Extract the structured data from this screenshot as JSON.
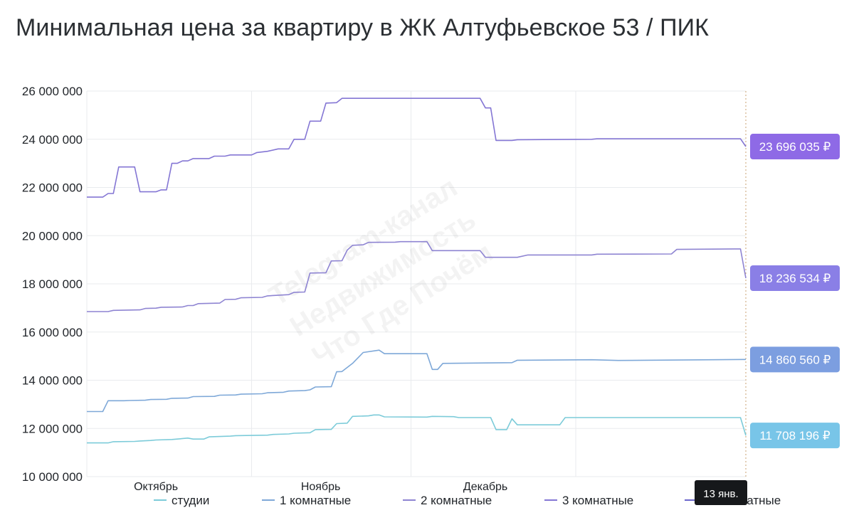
{
  "title": "Минимальная цена за квартиру в ЖК Алтуфьевское 53 / ПИК",
  "watermark": [
    "Telegram-канал",
    "Недвижимость",
    "Что Где Почём"
  ],
  "tooltip": "13 янв.",
  "chart_data": {
    "type": "line",
    "ylim": [
      10000000,
      26000000
    ],
    "yticks": [
      10000000,
      12000000,
      14000000,
      16000000,
      18000000,
      20000000,
      22000000,
      24000000,
      26000000
    ],
    "ytick_labels": [
      "10 000 000",
      "12 000 000",
      "14 000 000",
      "16 000 000",
      "18 000 000",
      "20 000 000",
      "22 000 000",
      "24 000 000",
      "26 000 000"
    ],
    "x_range": [
      "2024-09-11",
      "2025-01-13"
    ],
    "x_grid_dates": [
      "2024-09-11",
      "2024-10-12",
      "2024-11-11",
      "2024-12-12",
      "2025-01-13"
    ],
    "x_labels": [
      {
        "date": "2024-09-24",
        "label": "Октябрь"
      },
      {
        "date": "2024-10-25",
        "label": "Ноябрь"
      },
      {
        "date": "2024-11-25",
        "label": "Декабрь"
      }
    ],
    "legend_position": "bottom",
    "series": [
      {
        "name": "студии",
        "color": "#7ccbd9",
        "badge_color": "#78c5e8",
        "last_value_label": "11 708 196 ₽",
        "points": [
          [
            "2024-09-11",
            11400000
          ],
          [
            "2024-09-15",
            11400000
          ],
          [
            "2024-09-16",
            11450000
          ],
          [
            "2024-09-20",
            11460000
          ],
          [
            "2024-09-21",
            11480000
          ],
          [
            "2024-09-23",
            11500000
          ],
          [
            "2024-09-24",
            11520000
          ],
          [
            "2024-09-27",
            11540000
          ],
          [
            "2024-09-28",
            11560000
          ],
          [
            "2024-09-30",
            11600000
          ],
          [
            "2024-10-01",
            11560000
          ],
          [
            "2024-10-03",
            11560000
          ],
          [
            "2024-10-04",
            11650000
          ],
          [
            "2024-10-08",
            11680000
          ],
          [
            "2024-10-09",
            11700000
          ],
          [
            "2024-10-15",
            11720000
          ],
          [
            "2024-10-16",
            11750000
          ],
          [
            "2024-10-19",
            11770000
          ],
          [
            "2024-10-20",
            11800000
          ],
          [
            "2024-10-23",
            11820000
          ],
          [
            "2024-10-24",
            11950000
          ],
          [
            "2024-10-27",
            11960000
          ],
          [
            "2024-10-28",
            12200000
          ],
          [
            "2024-10-30",
            12220000
          ],
          [
            "2024-10-31",
            12500000
          ],
          [
            "2024-11-03",
            12520000
          ],
          [
            "2024-11-04",
            12560000
          ],
          [
            "2024-11-05",
            12560000
          ],
          [
            "2024-11-06",
            12480000
          ],
          [
            "2024-11-14",
            12470000
          ],
          [
            "2024-11-15",
            12500000
          ],
          [
            "2024-11-19",
            12490000
          ],
          [
            "2024-11-20",
            12450000
          ],
          [
            "2024-11-26",
            12450000
          ],
          [
            "2024-11-27",
            11950000
          ],
          [
            "2024-11-29",
            11950000
          ],
          [
            "2024-11-30",
            12400000
          ],
          [
            "2024-12-01",
            12150000
          ],
          [
            "2024-12-09",
            12150000
          ],
          [
            "2024-12-10",
            12450000
          ],
          [
            "2025-01-12",
            12450000
          ],
          [
            "2025-01-13",
            11708196
          ]
        ]
      },
      {
        "name": "1 комнатные",
        "color": "#7ea8d8",
        "badge_color": "#7c9ee0",
        "last_value_label": "14 860 560 ₽",
        "points": [
          [
            "2024-09-11",
            12700000
          ],
          [
            "2024-09-14",
            12700000
          ],
          [
            "2024-09-15",
            13150000
          ],
          [
            "2024-09-18",
            13150000
          ],
          [
            "2024-09-19",
            13160000
          ],
          [
            "2024-09-22",
            13170000
          ],
          [
            "2024-09-23",
            13200000
          ],
          [
            "2024-09-26",
            13210000
          ],
          [
            "2024-09-27",
            13250000
          ],
          [
            "2024-09-30",
            13260000
          ],
          [
            "2024-10-01",
            13320000
          ],
          [
            "2024-10-05",
            13330000
          ],
          [
            "2024-10-06",
            13380000
          ],
          [
            "2024-10-09",
            13390000
          ],
          [
            "2024-10-10",
            13420000
          ],
          [
            "2024-10-14",
            13440000
          ],
          [
            "2024-10-15",
            13480000
          ],
          [
            "2024-10-18",
            13500000
          ],
          [
            "2024-10-19",
            13550000
          ],
          [
            "2024-10-22",
            13570000
          ],
          [
            "2024-10-23",
            13600000
          ],
          [
            "2024-10-24",
            13720000
          ],
          [
            "2024-10-27",
            13730000
          ],
          [
            "2024-10-28",
            14350000
          ],
          [
            "2024-10-29",
            14360000
          ],
          [
            "2024-10-31",
            14700000
          ],
          [
            "2024-11-02",
            15150000
          ],
          [
            "2024-11-05",
            15250000
          ],
          [
            "2024-11-06",
            15100000
          ],
          [
            "2024-11-14",
            15100000
          ],
          [
            "2024-11-15",
            14450000
          ],
          [
            "2024-11-16",
            14450000
          ],
          [
            "2024-11-17",
            14700000
          ],
          [
            "2024-11-30",
            14730000
          ],
          [
            "2024-12-01",
            14830000
          ],
          [
            "2024-12-15",
            14850000
          ],
          [
            "2024-12-20",
            14820000
          ],
          [
            "2025-01-13",
            14860560
          ]
        ]
      },
      {
        "name": "2 комнатные",
        "color": "#8e84d2",
        "badge_color": "#8a7fe6",
        "last_value_label": "18 236 534 ₽",
        "points": [
          [
            "2024-09-11",
            16850000
          ],
          [
            "2024-09-15",
            16850000
          ],
          [
            "2024-09-16",
            16900000
          ],
          [
            "2024-09-21",
            16920000
          ],
          [
            "2024-09-22",
            16980000
          ],
          [
            "2024-09-24",
            16990000
          ],
          [
            "2024-09-25",
            17030000
          ],
          [
            "2024-09-29",
            17040000
          ],
          [
            "2024-09-30",
            17100000
          ],
          [
            "2024-10-01",
            17100000
          ],
          [
            "2024-10-02",
            17180000
          ],
          [
            "2024-10-06",
            17200000
          ],
          [
            "2024-10-07",
            17350000
          ],
          [
            "2024-10-09",
            17360000
          ],
          [
            "2024-10-10",
            17420000
          ],
          [
            "2024-10-14",
            17440000
          ],
          [
            "2024-10-15",
            17500000
          ],
          [
            "2024-10-19",
            17550000
          ],
          [
            "2024-10-20",
            17650000
          ],
          [
            "2024-10-22",
            17660000
          ],
          [
            "2024-10-23",
            18450000
          ],
          [
            "2024-10-26",
            18460000
          ],
          [
            "2024-10-27",
            18950000
          ],
          [
            "2024-10-29",
            18960000
          ],
          [
            "2024-10-30",
            19400000
          ],
          [
            "2024-10-31",
            19600000
          ],
          [
            "2024-11-02",
            19620000
          ],
          [
            "2024-11-03",
            19720000
          ],
          [
            "2024-11-08",
            19730000
          ],
          [
            "2024-11-09",
            19750000
          ],
          [
            "2024-11-14",
            19750000
          ],
          [
            "2024-11-15",
            19380000
          ],
          [
            "2024-11-24",
            19380000
          ],
          [
            "2024-11-25",
            19100000
          ],
          [
            "2024-12-01",
            19100000
          ],
          [
            "2024-12-03",
            19200000
          ],
          [
            "2024-12-04",
            19200000
          ],
          [
            "2024-12-15",
            19200000
          ],
          [
            "2024-12-16",
            19230000
          ],
          [
            "2024-12-30",
            19240000
          ],
          [
            "2024-12-31",
            19430000
          ],
          [
            "2025-01-11",
            19450000
          ],
          [
            "2025-01-12",
            19450000
          ],
          [
            "2025-01-13",
            18236534
          ]
        ]
      },
      {
        "name": "3 комнатные",
        "color": "#8476d4",
        "badge_color": "#8e6ae6",
        "last_value_label": "23 696 035 ₽",
        "points": [
          [
            "2024-09-11",
            21600000
          ],
          [
            "2024-09-14",
            21600000
          ],
          [
            "2024-09-15",
            21750000
          ],
          [
            "2024-09-16",
            21750000
          ],
          [
            "2024-09-17",
            22850000
          ],
          [
            "2024-09-20",
            22850000
          ],
          [
            "2024-09-21",
            21820000
          ],
          [
            "2024-09-24",
            21820000
          ],
          [
            "2024-09-25",
            21900000
          ],
          [
            "2024-09-26",
            21900000
          ],
          [
            "2024-09-27",
            23000000
          ],
          [
            "2024-09-28",
            23000000
          ],
          [
            "2024-09-29",
            23100000
          ],
          [
            "2024-09-30",
            23100000
          ],
          [
            "2024-10-01",
            23200000
          ],
          [
            "2024-10-04",
            23200000
          ],
          [
            "2024-10-05",
            23300000
          ],
          [
            "2024-10-07",
            23300000
          ],
          [
            "2024-10-08",
            23350000
          ],
          [
            "2024-10-12",
            23350000
          ],
          [
            "2024-10-13",
            23450000
          ],
          [
            "2024-10-15",
            23500000
          ],
          [
            "2024-10-17",
            23600000
          ],
          [
            "2024-10-19",
            23600000
          ],
          [
            "2024-10-20",
            24000000
          ],
          [
            "2024-10-22",
            24000000
          ],
          [
            "2024-10-23",
            24750000
          ],
          [
            "2024-10-25",
            24750000
          ],
          [
            "2024-10-26",
            25500000
          ],
          [
            "2024-10-28",
            25520000
          ],
          [
            "2024-10-29",
            25700000
          ],
          [
            "2024-11-24",
            25700000
          ],
          [
            "2024-11-25",
            25300000
          ],
          [
            "2024-11-26",
            25300000
          ],
          [
            "2024-11-27",
            23950000
          ],
          [
            "2024-11-30",
            23950000
          ],
          [
            "2024-12-01",
            23980000
          ],
          [
            "2024-12-15",
            24000000
          ],
          [
            "2024-12-16",
            24020000
          ],
          [
            "2025-01-12",
            24020000
          ],
          [
            "2025-01-13",
            23696035
          ]
        ]
      },
      {
        "name": "4+ комнатные",
        "color": "#6b66cc",
        "points": []
      }
    ]
  }
}
